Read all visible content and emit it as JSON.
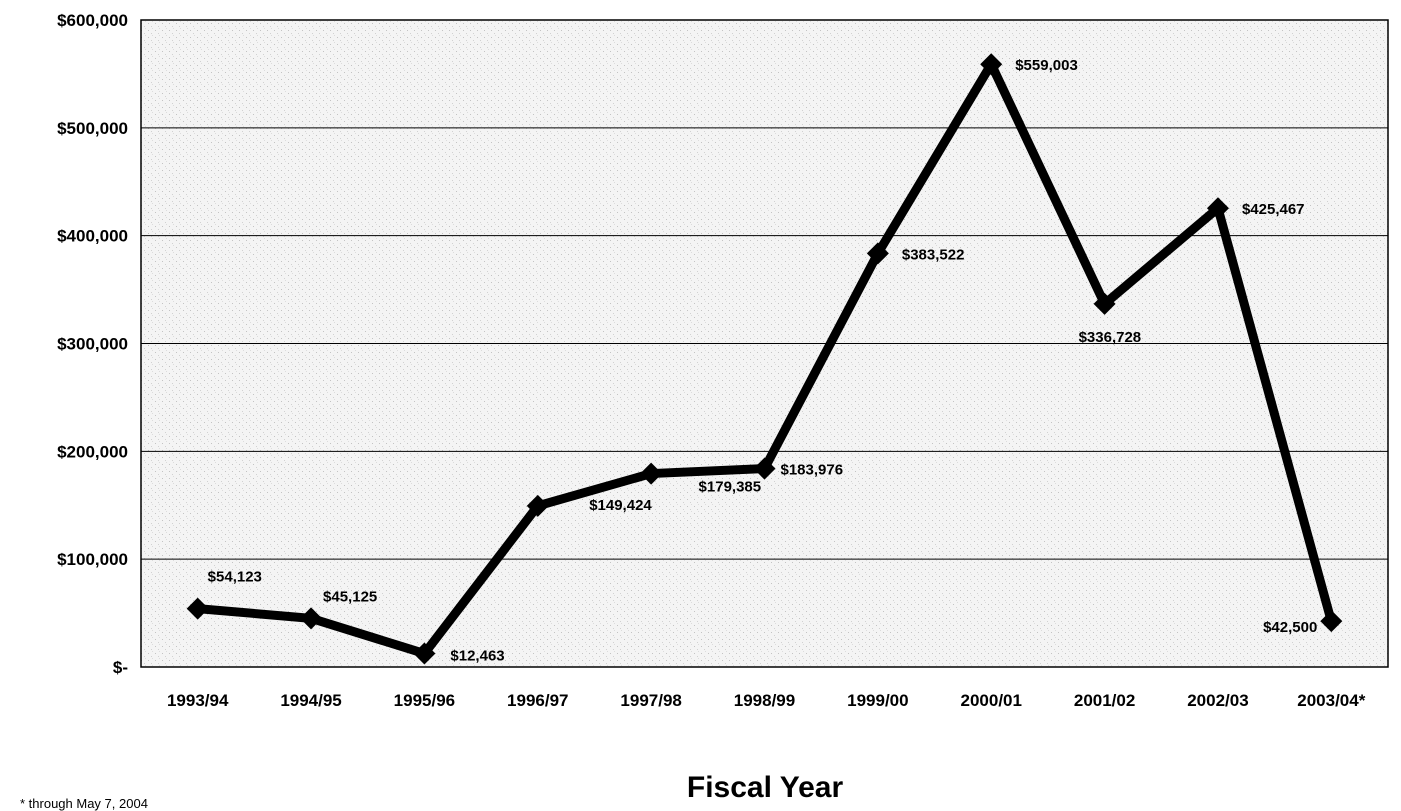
{
  "chart_data": {
    "type": "line",
    "title": "",
    "xlabel": "Fiscal Year",
    "ylabel": "",
    "categories": [
      "1993/94",
      "1994/95",
      "1995/96",
      "1996/97",
      "1997/98",
      "1998/99",
      "1999/00",
      "2000/01",
      "2001/02",
      "2002/03",
      "2003/04*"
    ],
    "series": [
      {
        "values": [
          54123,
          45125,
          12463,
          149424,
          179385,
          183976,
          383522,
          559003,
          336728,
          425467,
          42500
        ],
        "labels": [
          "$54,123",
          "$45,125",
          "$12,463",
          "$149,424",
          "$179,385",
          "$183,976",
          "$383,522",
          "$559,003",
          "$336,728",
          "$425,467",
          "$42,500"
        ],
        "color": "#000000",
        "marker": "diamond"
      }
    ],
    "yticks": [
      0,
      100000,
      200000,
      300000,
      400000,
      500000,
      600000
    ],
    "ytick_labels": [
      "$-",
      "$100,000",
      "$200,000",
      "$300,000",
      "$400,000",
      "$500,000",
      "$600,000"
    ],
    "ylim": [
      0,
      600000
    ],
    "grid": true,
    "legend": "none"
  },
  "footnote": "* through May 7, 2004"
}
